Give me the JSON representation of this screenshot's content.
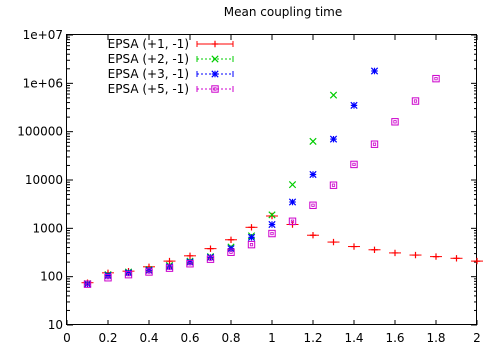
{
  "chart_data": {
    "type": "scatter",
    "title": "Mean coupling time",
    "xlabel": "",
    "ylabel": "",
    "xlim": [
      0,
      2
    ],
    "ylim": [
      10,
      10000000
    ],
    "y_scale": "log",
    "grid": false,
    "legend_position": "top-left",
    "x_ticks": [
      "0",
      "0.2",
      "0.4",
      "0.6",
      "0.8",
      "1",
      "1.2",
      "1.4",
      "1.6",
      "1.8",
      "2"
    ],
    "y_ticks": [
      "10",
      "100",
      "1000",
      "10000",
      "100000",
      "1e+06",
      "1e+07"
    ],
    "series": [
      {
        "name": "EPSA (+1, -1)",
        "color": "#ff0000",
        "marker": "plus",
        "x": [
          0.1,
          0.2,
          0.3,
          0.4,
          0.5,
          0.6,
          0.7,
          0.8,
          0.9,
          1.0,
          1.1,
          1.2,
          1.3,
          1.4,
          1.5,
          1.6,
          1.7,
          1.8,
          1.9,
          2.0
        ],
        "y": [
          75,
          120,
          130,
          160,
          210,
          270,
          380,
          580,
          1050,
          1800,
          1200,
          720,
          520,
          420,
          360,
          310,
          280,
          260,
          240,
          210
        ]
      },
      {
        "name": "EPSA (+2, -1)",
        "color": "#00cc00",
        "marker": "x",
        "x": [
          0.1,
          0.2,
          0.3,
          0.4,
          0.5,
          0.6,
          0.7,
          0.8,
          0.9,
          1.0,
          1.1,
          1.2,
          1.3
        ],
        "y": [
          72,
          110,
          125,
          140,
          170,
          210,
          260,
          410,
          700,
          1900,
          8000,
          63000,
          570000
        ]
      },
      {
        "name": "EPSA (+3, -1)",
        "color": "#0000ff",
        "marker": "star",
        "x": [
          0.1,
          0.2,
          0.3,
          0.4,
          0.5,
          0.6,
          0.7,
          0.8,
          0.9,
          1.0,
          1.1,
          1.2,
          1.3,
          1.4,
          1.5
        ],
        "y": [
          70,
          105,
          120,
          135,
          160,
          200,
          250,
          380,
          650,
          1200,
          3500,
          13000,
          70000,
          350000,
          1800000
        ]
      },
      {
        "name": "EPSA (+5, -1)",
        "color": "#cc00cc",
        "marker": "square",
        "x": [
          0.1,
          0.2,
          0.3,
          0.4,
          0.5,
          0.6,
          0.7,
          0.8,
          0.9,
          1.0,
          1.1,
          1.2,
          1.3,
          1.4,
          1.5,
          1.6,
          1.7,
          1.8
        ],
        "y": [
          70,
          95,
          110,
          125,
          150,
          185,
          230,
          320,
          460,
          780,
          1400,
          3000,
          7800,
          21000,
          55000,
          160000,
          430000,
          1250000
        ]
      }
    ]
  }
}
